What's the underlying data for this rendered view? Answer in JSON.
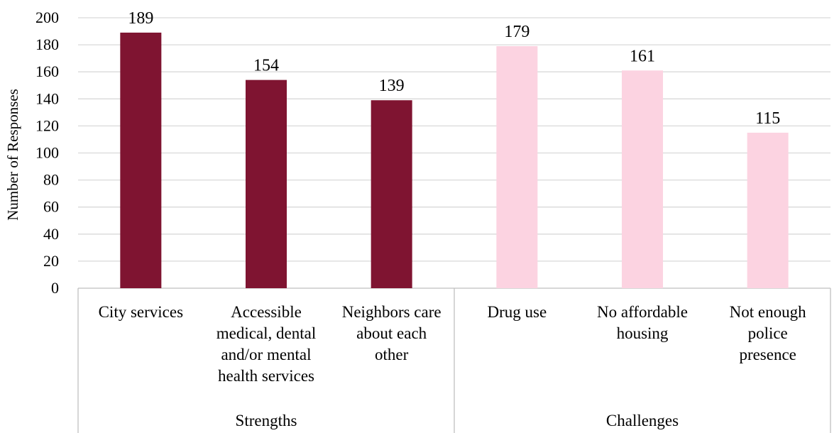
{
  "chart_data": {
    "type": "bar",
    "ylabel": "Number of Responses",
    "ylim": [
      0,
      200
    ],
    "y_ticks": [
      0,
      20,
      40,
      60,
      80,
      100,
      120,
      140,
      160,
      180,
      200
    ],
    "grid": true,
    "categories": [
      "City services",
      "Accessible medical, dental and/or mental health services",
      "Neighbors care about each other",
      "Drug use",
      "No affordable housing",
      "Not enough police presence"
    ],
    "category_lines": [
      [
        "City services"
      ],
      [
        "Accessible",
        "medical, dental",
        "and/or mental",
        "health services"
      ],
      [
        "Neighbors care",
        "about each",
        "other"
      ],
      [
        "Drug use"
      ],
      [
        "No affordable",
        "housing"
      ],
      [
        "Not enough",
        "police",
        "presence"
      ]
    ],
    "values": [
      189,
      154,
      139,
      179,
      161,
      115
    ],
    "groups": [
      {
        "name": "Strengths",
        "count": 3,
        "color": "#7f1431"
      },
      {
        "name": "Challenges",
        "count": 3,
        "color": "#fcd3e1"
      }
    ]
  }
}
